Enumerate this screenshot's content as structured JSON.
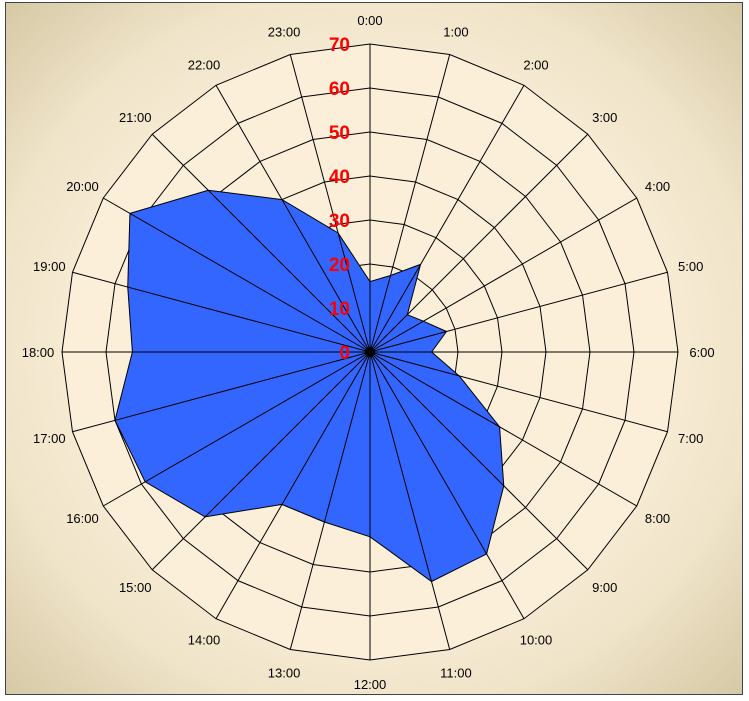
{
  "chart_data": {
    "type": "radar",
    "categories": [
      "0:00",
      "1:00",
      "2:00",
      "3:00",
      "4:00",
      "5:00",
      "6:00",
      "7:00",
      "8:00",
      "9:00",
      "10:00",
      "11:00",
      "12:00",
      "13:00",
      "14:00",
      "15:00",
      "16:00",
      "17:00",
      "18:00",
      "19:00",
      "20:00",
      "21:00",
      "22:00",
      "23:00"
    ],
    "values": [
      16,
      18,
      23,
      12,
      14,
      18,
      14,
      21,
      34,
      43,
      53,
      54,
      42,
      40,
      40,
      53,
      59,
      60,
      54,
      57,
      63,
      52,
      40,
      28
    ],
    "radial_ticks": [
      "0",
      "10",
      "20",
      "30",
      "40",
      "50",
      "60",
      "70"
    ],
    "rlim": [
      0,
      70
    ],
    "grid": true,
    "colors": {
      "series": "#3366ff",
      "tick_labels": "#ff0000",
      "plot_background": "#fcefd9"
    }
  }
}
